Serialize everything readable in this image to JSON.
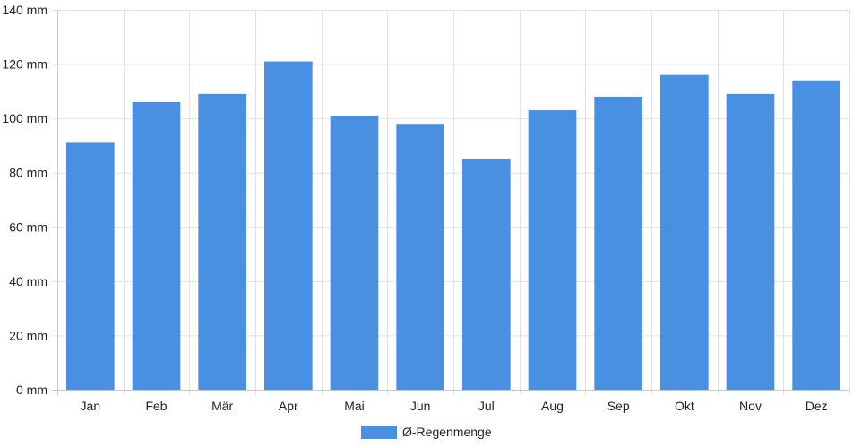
{
  "chart_data": {
    "type": "bar",
    "categories": [
      "Jan",
      "Feb",
      "Mär",
      "Apr",
      "Mai",
      "Jun",
      "Jul",
      "Aug",
      "Sep",
      "Okt",
      "Nov",
      "Dez"
    ],
    "series": [
      {
        "name": "Ø-Regenmenge",
        "values": [
          91,
          106,
          109,
          121,
          101,
          98,
          85,
          103,
          108,
          116,
          109,
          114
        ],
        "color": "#4a90e2"
      }
    ],
    "y_ticks": [
      "0 mm",
      "20 mm",
      "40 mm",
      "60 mm",
      "80 mm",
      "100 mm",
      "120 mm",
      "140 mm"
    ],
    "ylim": [
      0,
      140
    ],
    "ystep": 20,
    "grid": true,
    "legend_position": "bottom-center"
  }
}
